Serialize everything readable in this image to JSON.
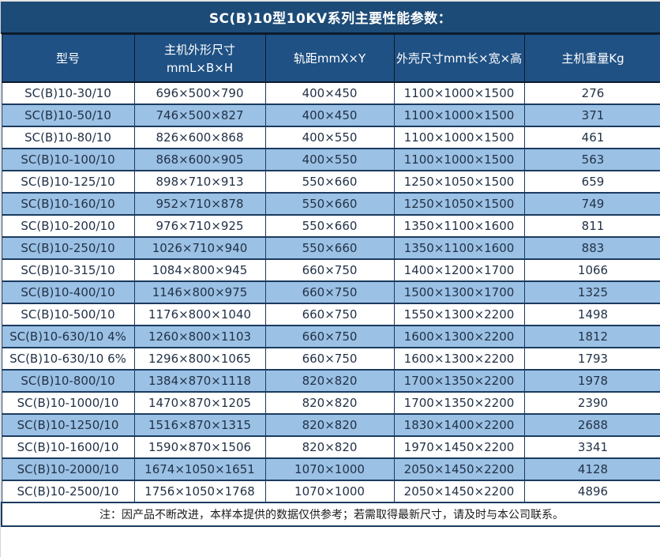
{
  "panel": {
    "title": "SC(B)10型10KV系列主要性能参数：",
    "note": "注：因产品不断改进，本样本提供的数据仅供参考；若需取得最新尺寸，请及时与本公司联系。"
  },
  "columns": [
    {
      "label": "型号",
      "sublabel": ""
    },
    {
      "label": "主机外形尺寸",
      "sublabel": "mmL×B×H"
    },
    {
      "label": "轨距mmX×Y",
      "sublabel": ""
    },
    {
      "label": "外壳尺寸mm长×宽×高",
      "sublabel": ""
    },
    {
      "label": "主机重量Kg",
      "sublabel": ""
    }
  ],
  "rows": [
    [
      "SC(B)10-30/10",
      "696×500×790",
      "400×450",
      "1100×1000×1500",
      "276"
    ],
    [
      "SC(B)10-50/10",
      "746×500×827",
      "400×450",
      "1100×1000×1500",
      "371"
    ],
    [
      "SC(B)10-80/10",
      "826×600×868",
      "400×550",
      "1100×1000×1500",
      "461"
    ],
    [
      "SC(B)10-100/10",
      "868×600×905",
      "400×550",
      "1100×1000×1500",
      "563"
    ],
    [
      "SC(B)10-125/10",
      "898×710×913",
      "550×660",
      "1250×1050×1500",
      "659"
    ],
    [
      "SC(B)10-160/10",
      "952×710×878",
      "550×660",
      "1250×1050×1500",
      "749"
    ],
    [
      "SC(B)10-200/10",
      "976×710×925",
      "550×660",
      "1350×1100×1600",
      "811"
    ],
    [
      "SC(B)10-250/10",
      "1026×710×940",
      "550×660",
      "1350×1100×1600",
      "883"
    ],
    [
      "SC(B)10-315/10",
      "1084×800×945",
      "660×750",
      "1400×1200×1700",
      "1066"
    ],
    [
      "SC(B)10-400/10",
      "1146×800×975",
      "660×750",
      "1500×1300×1700",
      "1325"
    ],
    [
      "SC(B)10-500/10",
      "1176×800×1040",
      "660×750",
      "1550×1300×2200",
      "1498"
    ],
    [
      "SC(B)10-630/10 4%",
      "1260×800×1103",
      "660×750",
      "1600×1300×2200",
      "1812"
    ],
    [
      "SC(B)10-630/10 6%",
      "1296×800×1065",
      "660×750",
      "1600×1300×2200",
      "1793"
    ],
    [
      "SC(B)10-800/10",
      "1384×870×1118",
      "820×820",
      "1700×1350×2200",
      "1978"
    ],
    [
      "SC(B)10-1000/10",
      "1470×870×1205",
      "820×820",
      "1700×1350×2200",
      "2390"
    ],
    [
      "SC(B)10-1250/10",
      "1516×870×1315",
      "820×820",
      "1830×1400×2200",
      "2688"
    ],
    [
      "SC(B)10-1600/10",
      "1590×870×1506",
      "820×820",
      "1970×1450×2200",
      "3341"
    ],
    [
      "SC(B)10-2000/10",
      "1674×1050×1651",
      "1070×1000",
      "2050×1450×2200",
      "4128"
    ],
    [
      "SC(B)10-2500/10",
      "1756×1050×1768",
      "1070×1000",
      "2050×1450×2200",
      "4896"
    ]
  ],
  "colors": {
    "title_bg": "#1d4b77",
    "header_bg": "#1f5184",
    "row_alt_bg": "#9bc1e5",
    "row_base_bg": "#ffffff",
    "border": "#1b3b5f",
    "header_text": "#ffffff",
    "body_text": "#223247"
  }
}
